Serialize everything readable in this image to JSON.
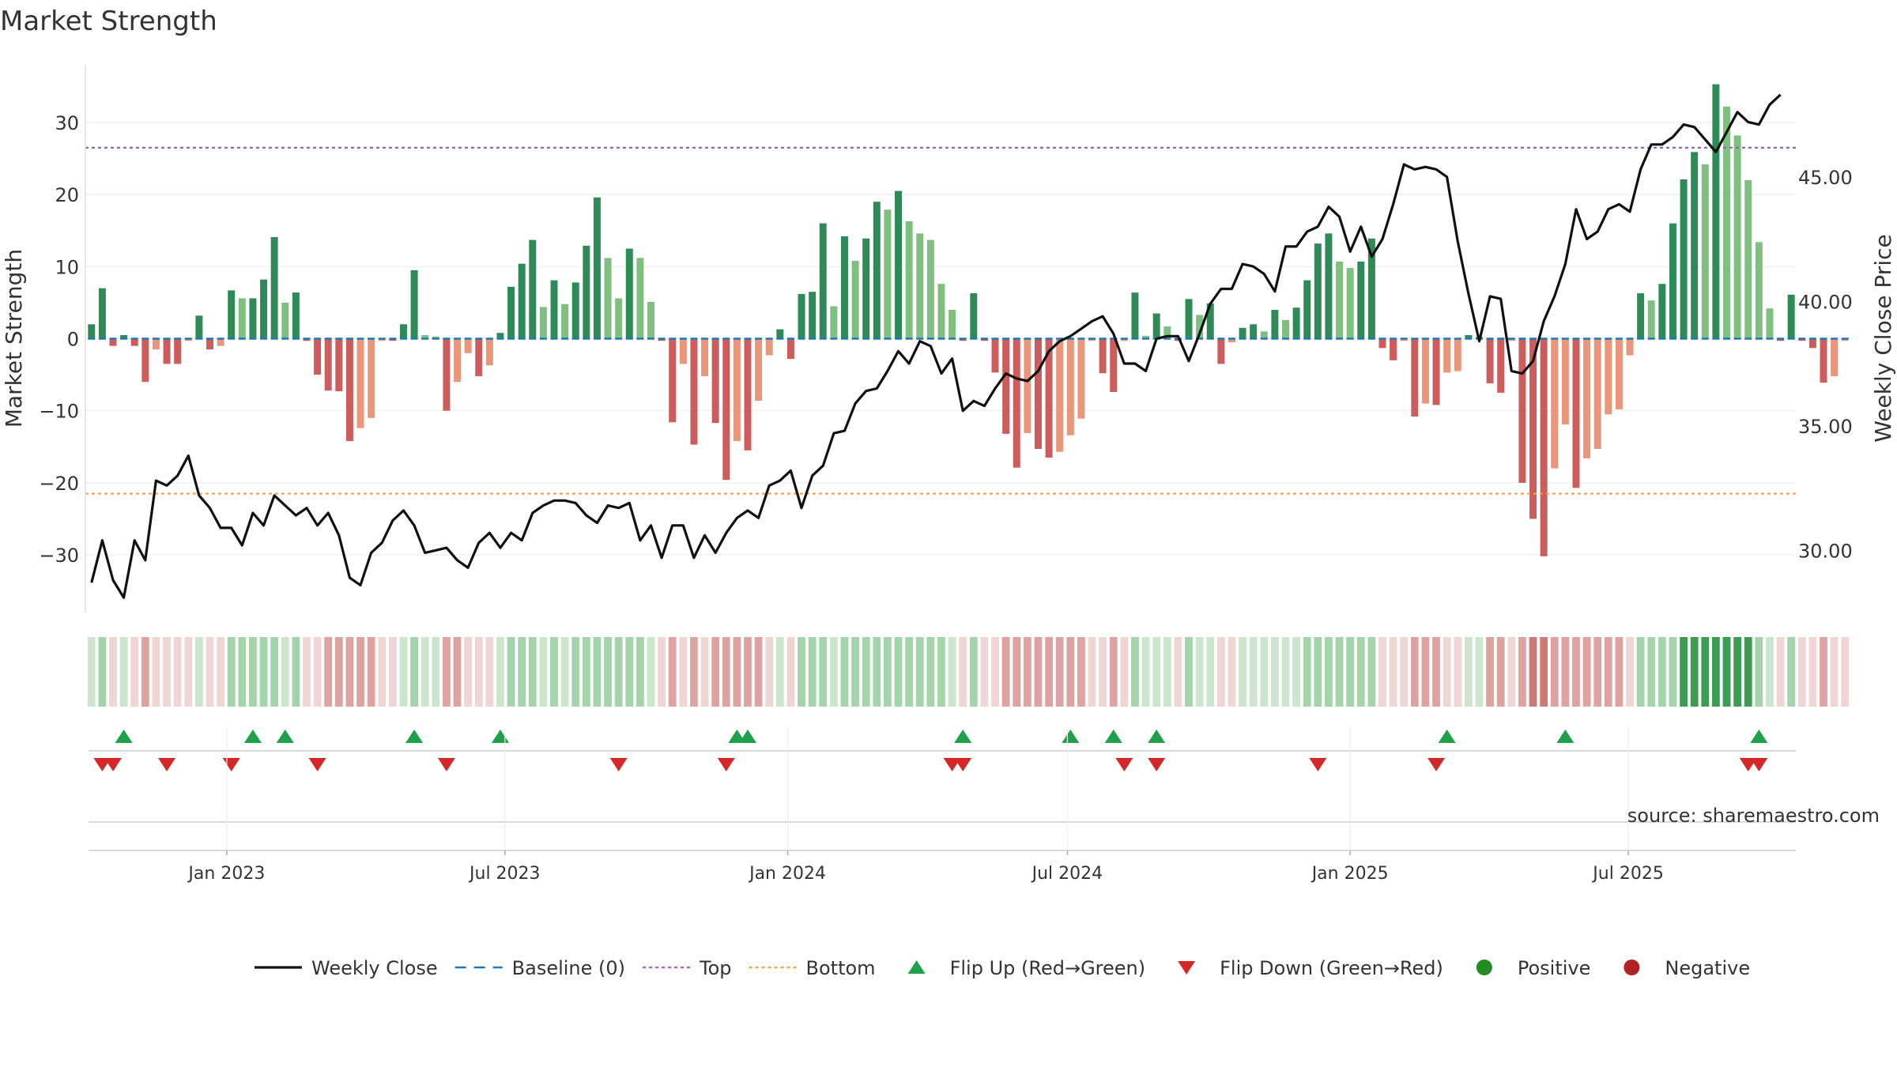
{
  "chart_data": {
    "type": "bar",
    "title": "Market Strength",
    "ylabel_left": "Market Strength",
    "ylabel_right": "Weekly Close Price",
    "ylim_left": [
      -38,
      38
    ],
    "ylim_right": [
      27.5,
      49.5
    ],
    "yticks_left": [
      30,
      20,
      10,
      0,
      -10,
      -20,
      -30
    ],
    "ytick_labels_left": [
      "30",
      "20",
      "10",
      "0",
      "−10",
      "−20",
      "−30"
    ],
    "yticks_right": [
      45,
      40,
      35,
      30
    ],
    "ytick_labels_right": [
      "45.00",
      "40.00",
      "35.00",
      "30.00"
    ],
    "top_line": 26.5,
    "bottom_line": -21.5,
    "x_start": "2022-10-01",
    "x_end": "2025-10-18",
    "xticks": [
      "2023-01-01",
      "2023-07-01",
      "2024-01-01",
      "2024-07-01",
      "2025-01-01",
      "2025-07-01"
    ],
    "xtick_labels": [
      "Jan 2023",
      "Jul 2023",
      "Jan 2024",
      "Jul 2024",
      "Jan 2025",
      "Jul 2025"
    ],
    "weeks_start": "2022-10-05",
    "strength": [
      2,
      7,
      -1,
      0.5,
      -1,
      -6,
      -1.5,
      -3.5,
      -3.5,
      -0.3,
      3.2,
      -1.5,
      -1,
      6.7,
      5.6,
      5.6,
      8.2,
      14.1,
      5,
      6.4,
      -0.3,
      -5,
      -7.2,
      -7.3,
      -14.2,
      -12.4,
      -11,
      -0.3,
      -0.3,
      2,
      9.5,
      0.5,
      0.3,
      -10,
      -6,
      -2,
      -5.2,
      -3.7,
      0.8,
      7.2,
      10.4,
      13.7,
      4.4,
      8.1,
      4.8,
      7.8,
      12.9,
      19.6,
      11.2,
      5.6,
      12.5,
      11.2,
      5.1,
      -0.3,
      -11.6,
      -3.5,
      -14.7,
      -5.2,
      -11.7,
      -19.6,
      -14.2,
      -15.5,
      -8.6,
      -2.3,
      1.3,
      -2.8,
      6.2,
      6.5,
      16,
      4.5,
      14.2,
      10.8,
      13.9,
      19,
      17.9,
      20.5,
      16.3,
      14.6,
      13.7,
      7.6,
      4,
      -0.3,
      6.3,
      -0.3,
      -4.7,
      -13.2,
      -17.9,
      -13.1,
      -15.3,
      -16.5,
      -15.7,
      -13.4,
      -11.1,
      -0.3,
      -4.8,
      -7.4,
      -0.3,
      6.4,
      0.4,
      3.5,
      1.7,
      -0.3,
      5.5,
      3.3,
      4.9,
      -3.5,
      -0.5,
      1.5,
      2,
      1,
      4,
      2.6,
      4.3,
      8.1,
      13.2,
      14.6,
      10.7,
      9.8,
      10.7,
      13.9,
      -1.3,
      -3,
      -0.3,
      -10.8,
      -9,
      -9.2,
      -4.7,
      -4.5,
      0.5,
      0.3,
      -6.2,
      -7.5,
      -0.3,
      -20,
      -25,
      -30.2,
      -18,
      -11.9,
      -20.7,
      -16.6,
      -15.3,
      -10.5,
      -9.8,
      -2.3,
      6.3,
      5.3,
      7.6,
      16,
      22.1,
      25.9,
      24.2,
      35.3,
      32.2,
      28.2,
      22,
      13.4,
      4.2,
      -0.3,
      6.1,
      -0.3,
      -1.3,
      -6.1,
      -5.2,
      -0.3
    ],
    "weekly_close": [
      28.7,
      30.4,
      28.8,
      28.1,
      30.4,
      29.6,
      32.8,
      32.6,
      33,
      33.8,
      32.2,
      31.7,
      30.9,
      30.9,
      30.2,
      31.5,
      31,
      32.2,
      31.8,
      31.4,
      31.7,
      31,
      31.5,
      30.6,
      28.9,
      28.6,
      29.9,
      30.3,
      31.2,
      31.6,
      31,
      29.9,
      30,
      30.1,
      29.6,
      29.3,
      30.3,
      30.7,
      30.1,
      30.7,
      30.4,
      31.5,
      31.8,
      32,
      32,
      31.9,
      31.4,
      31.1,
      31.8,
      31.7,
      31.9,
      30.4,
      31,
      29.7,
      31,
      31,
      29.7,
      30.6,
      29.9,
      30.7,
      31.3,
      31.6,
      31.3,
      32.6,
      32.8,
      33.2,
      31.7,
      33,
      33.4,
      34.7,
      34.8,
      35.9,
      36.4,
      36.5,
      37.2,
      38,
      37.5,
      38.4,
      38.2,
      37.1,
      37.7,
      35.6,
      36,
      35.8,
      36.5,
      37.1,
      36.9,
      36.8,
      37.2,
      38,
      38.4,
      38.6,
      38.9,
      39.2,
      39.4,
      38.7,
      37.5,
      37.5,
      37.2,
      38.5,
      38.6,
      38.6,
      37.6,
      38.7,
      39.9,
      40.5,
      40.5,
      41.5,
      41.4,
      41.1,
      40.4,
      42.2,
      42.2,
      42.8,
      43,
      43.8,
      43.4,
      42,
      43,
      41.8,
      42.5,
      43.9,
      45.5,
      45.3,
      45.4,
      45.3,
      45,
      42.4,
      40.3,
      38.4,
      40.2,
      40.1,
      37.2,
      37.1,
      37.6,
      39.2,
      40.2,
      41.5,
      43.7,
      42.5,
      42.8,
      43.7,
      43.9,
      43.6,
      45.3,
      46.3,
      46.3,
      46.6,
      47.1,
      47,
      46.5,
      46,
      46.8,
      47.6,
      47.2,
      47.1,
      47.9,
      48.3
    ]
  },
  "heat_colors": {
    "dark_green": "#3a9d51",
    "mid_green": "#a3d4aa",
    "light_green": "#cbe6cd",
    "dark_red": "#cd7a74",
    "mid_red": "#dea3a0",
    "light_red": "#efd6d5"
  },
  "colors": {
    "green_dark": "#2e8b57",
    "green_light": "#7fbf7f",
    "red_dark": "#cd5c5c",
    "red_light": "#e9967a",
    "line": "#111111",
    "baseline": "#1f77b4",
    "top": "#9467bd",
    "bottom": "#ff9f40",
    "flip_up": "#1fa04a",
    "flip_down": "#d62728",
    "positive": "#228b22",
    "negative": "#b22222"
  },
  "flip_up_dates": [
    "2022-10-26",
    "2023-01-18",
    "2023-02-08",
    "2023-05-03",
    "2023-06-28",
    "2023-11-29",
    "2023-12-06",
    "2024-04-24",
    "2024-07-03",
    "2024-07-31",
    "2024-08-28",
    "2025-03-05",
    "2025-05-21",
    "2025-09-24"
  ],
  "flip_down_dates": [
    "2022-10-12",
    "2022-10-19",
    "2022-11-23",
    "2023-01-04",
    "2023-03-01",
    "2023-05-24",
    "2023-09-13",
    "2023-11-22",
    "2024-04-17",
    "2024-04-24",
    "2024-08-07",
    "2024-08-28",
    "2024-12-11",
    "2025-02-26",
    "2025-09-17",
    "2025-09-24"
  ],
  "source_text": "source: sharemaestro.com",
  "legend": [
    {
      "label": "Weekly Close",
      "type": "line"
    },
    {
      "label": "Baseline (0)",
      "type": "dash"
    },
    {
      "label": "Top",
      "type": "dot-top"
    },
    {
      "label": "Bottom",
      "type": "dot-bottom"
    },
    {
      "label": "Flip Up (Red→Green)",
      "type": "tri-up"
    },
    {
      "label": "Flip Down (Green→Red)",
      "type": "tri-down"
    },
    {
      "label": "Positive",
      "type": "circle-pos"
    },
    {
      "label": "Negative",
      "type": "circle-neg"
    }
  ]
}
